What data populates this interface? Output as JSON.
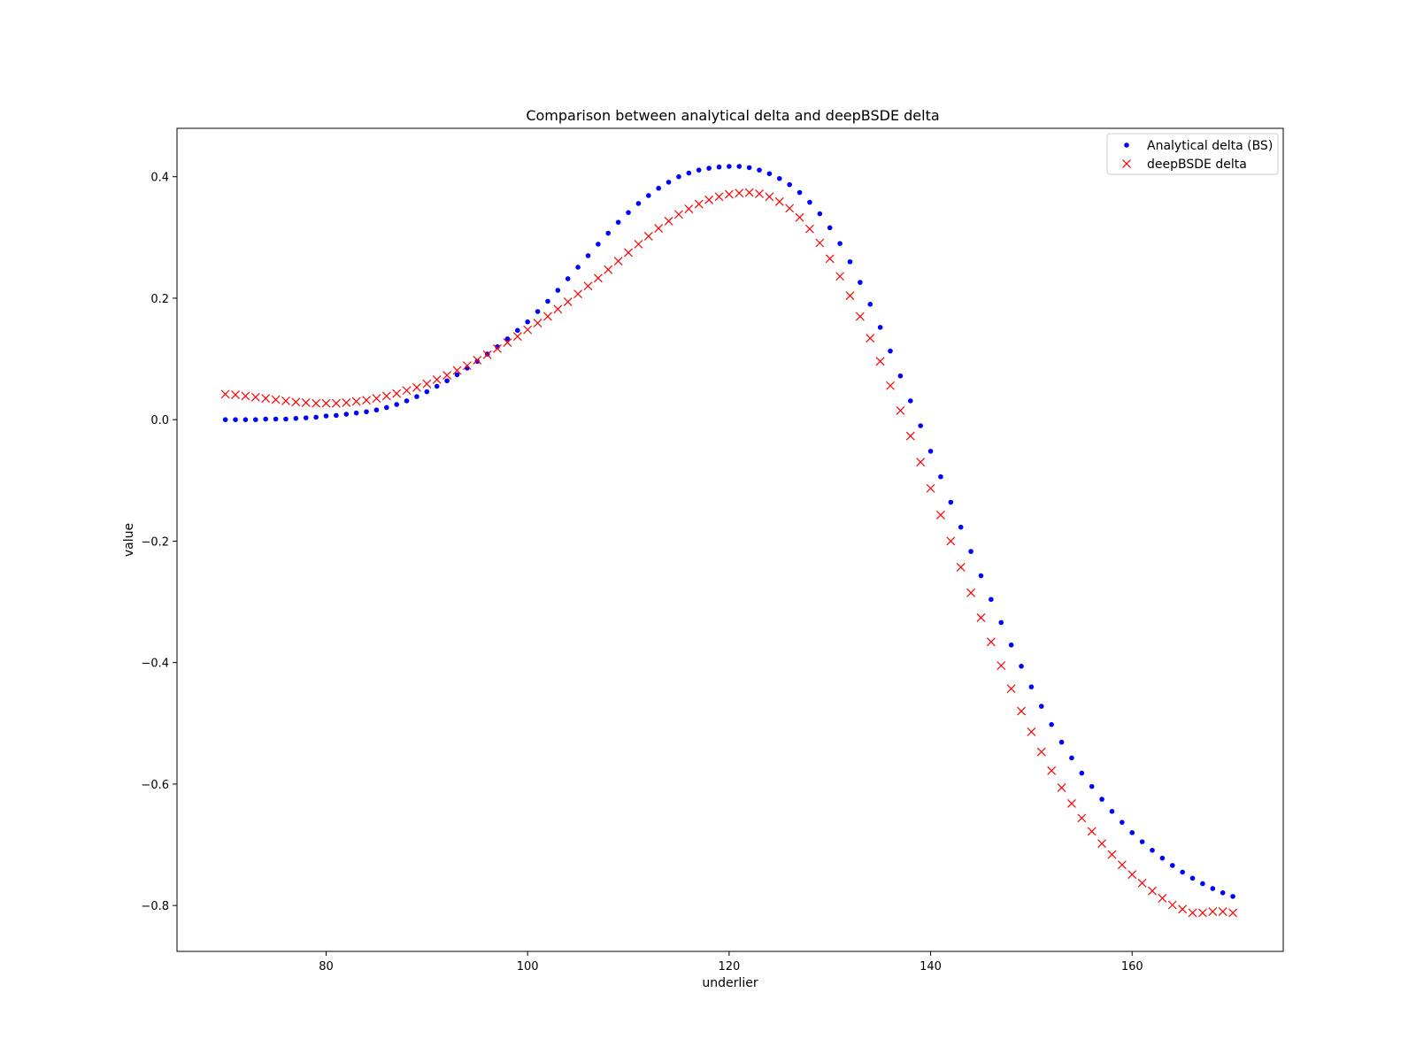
{
  "chart_data": {
    "type": "scatter",
    "title": "Comparison between analytical delta and deepBSDE delta",
    "xlabel": "underlier",
    "ylabel": "value",
    "xlim": [
      65.2,
      175.0
    ],
    "ylim": [
      -0.8755,
      0.4797
    ],
    "xticks": [
      80,
      100,
      120,
      140,
      160
    ],
    "xtick_labels": [
      "80",
      "100",
      "120",
      "140",
      "160"
    ],
    "yticks": [
      0.4,
      0.2,
      0.0,
      -0.2,
      -0.4,
      -0.6,
      -0.8
    ],
    "ytick_labels": [
      "0.4",
      "0.2",
      "0.0",
      "−0.2",
      "−0.4",
      "−0.6",
      "−0.8"
    ],
    "grid": false,
    "legend": {
      "position": "top-right",
      "entries": [
        "Analytical delta (BS)",
        "deepBSDE delta"
      ]
    },
    "series": [
      {
        "name": "Analytical delta (BS)",
        "marker": "dot",
        "color": "#0000ff",
        "points": [
          [
            70,
            0.0
          ],
          [
            71,
            0.0
          ],
          [
            72,
            0.0
          ],
          [
            73,
            0.0
          ],
          [
            74,
            0.001
          ],
          [
            75,
            0.001
          ],
          [
            76,
            0.001
          ],
          [
            77,
            0.002
          ],
          [
            78,
            0.003
          ],
          [
            79,
            0.004
          ],
          [
            80,
            0.006
          ],
          [
            81,
            0.007
          ],
          [
            82,
            0.009
          ],
          [
            83,
            0.011
          ],
          [
            84,
            0.013
          ],
          [
            85,
            0.016
          ],
          [
            86,
            0.02
          ],
          [
            87,
            0.025
          ],
          [
            88,
            0.031
          ],
          [
            89,
            0.038
          ],
          [
            90,
            0.046
          ],
          [
            91,
            0.055
          ],
          [
            92,
            0.064
          ],
          [
            93,
            0.074
          ],
          [
            94,
            0.085
          ],
          [
            95,
            0.096
          ],
          [
            96,
            0.108
          ],
          [
            97,
            0.12
          ],
          [
            98,
            0.133
          ],
          [
            99,
            0.147
          ],
          [
            100,
            0.161
          ],
          [
            101,
            0.178
          ],
          [
            102,
            0.195
          ],
          [
            103,
            0.213
          ],
          [
            104,
            0.232
          ],
          [
            105,
            0.251
          ],
          [
            106,
            0.27
          ],
          [
            107,
            0.289
          ],
          [
            108,
            0.307
          ],
          [
            109,
            0.325
          ],
          [
            110,
            0.341
          ],
          [
            111,
            0.356
          ],
          [
            112,
            0.369
          ],
          [
            113,
            0.381
          ],
          [
            114,
            0.391
          ],
          [
            115,
            0.4
          ],
          [
            116,
            0.406
          ],
          [
            117,
            0.411
          ],
          [
            118,
            0.414
          ],
          [
            119,
            0.416
          ],
          [
            120,
            0.417
          ],
          [
            121,
            0.417
          ],
          [
            122,
            0.415
          ],
          [
            123,
            0.411
          ],
          [
            124,
            0.405
          ],
          [
            125,
            0.397
          ],
          [
            126,
            0.387
          ],
          [
            127,
            0.374
          ],
          [
            128,
            0.358
          ],
          [
            129,
            0.339
          ],
          [
            130,
            0.316
          ],
          [
            131,
            0.29
          ],
          [
            132,
            0.26
          ],
          [
            133,
            0.226
          ],
          [
            134,
            0.19
          ],
          [
            135,
            0.152
          ],
          [
            136,
            0.113
          ],
          [
            137,
            0.072
          ],
          [
            138,
            0.031
          ],
          [
            139,
            -0.01
          ],
          [
            140,
            -0.052
          ],
          [
            141,
            -0.094
          ],
          [
            142,
            -0.136
          ],
          [
            143,
            -0.177
          ],
          [
            144,
            -0.217
          ],
          [
            145,
            -0.257
          ],
          [
            146,
            -0.296
          ],
          [
            147,
            -0.334
          ],
          [
            148,
            -0.371
          ],
          [
            149,
            -0.406
          ],
          [
            150,
            -0.44
          ],
          [
            151,
            -0.472
          ],
          [
            152,
            -0.502
          ],
          [
            153,
            -0.531
          ],
          [
            154,
            -0.557
          ],
          [
            155,
            -0.582
          ],
          [
            156,
            -0.604
          ],
          [
            157,
            -0.625
          ],
          [
            158,
            -0.645
          ],
          [
            159,
            -0.663
          ],
          [
            160,
            -0.68
          ],
          [
            161,
            -0.695
          ],
          [
            162,
            -0.709
          ],
          [
            163,
            -0.722
          ],
          [
            164,
            -0.734
          ],
          [
            165,
            -0.745
          ],
          [
            166,
            -0.755
          ],
          [
            167,
            -0.764
          ],
          [
            168,
            -0.772
          ],
          [
            169,
            -0.779
          ],
          [
            170,
            -0.785
          ]
        ]
      },
      {
        "name": "deepBSDE delta",
        "marker": "x",
        "color": "#ff0000",
        "points": [
          [
            70,
            0.042
          ],
          [
            71,
            0.041
          ],
          [
            72,
            0.039
          ],
          [
            73,
            0.037
          ],
          [
            74,
            0.035
          ],
          [
            75,
            0.033
          ],
          [
            76,
            0.031
          ],
          [
            77,
            0.029
          ],
          [
            78,
            0.028
          ],
          [
            79,
            0.027
          ],
          [
            80,
            0.027
          ],
          [
            81,
            0.027
          ],
          [
            82,
            0.028
          ],
          [
            83,
            0.03
          ],
          [
            84,
            0.032
          ],
          [
            85,
            0.035
          ],
          [
            86,
            0.039
          ],
          [
            87,
            0.043
          ],
          [
            88,
            0.048
          ],
          [
            89,
            0.053
          ],
          [
            90,
            0.059
          ],
          [
            91,
            0.066
          ],
          [
            92,
            0.073
          ],
          [
            93,
            0.081
          ],
          [
            94,
            0.089
          ],
          [
            95,
            0.098
          ],
          [
            96,
            0.107
          ],
          [
            97,
            0.117
          ],
          [
            98,
            0.127
          ],
          [
            99,
            0.137
          ],
          [
            100,
            0.148
          ],
          [
            101,
            0.159
          ],
          [
            102,
            0.17
          ],
          [
            103,
            0.182
          ],
          [
            104,
            0.194
          ],
          [
            105,
            0.207
          ],
          [
            106,
            0.22
          ],
          [
            107,
            0.233
          ],
          [
            108,
            0.247
          ],
          [
            109,
            0.261
          ],
          [
            110,
            0.275
          ],
          [
            111,
            0.289
          ],
          [
            112,
            0.302
          ],
          [
            113,
            0.315
          ],
          [
            114,
            0.327
          ],
          [
            115,
            0.338
          ],
          [
            116,
            0.347
          ],
          [
            117,
            0.355
          ],
          [
            118,
            0.362
          ],
          [
            119,
            0.367
          ],
          [
            120,
            0.371
          ],
          [
            121,
            0.373
          ],
          [
            122,
            0.374
          ],
          [
            123,
            0.372
          ],
          [
            124,
            0.367
          ],
          [
            125,
            0.359
          ],
          [
            126,
            0.348
          ],
          [
            127,
            0.333
          ],
          [
            128,
            0.314
          ],
          [
            129,
            0.291
          ],
          [
            130,
            0.265
          ],
          [
            131,
            0.236
          ],
          [
            132,
            0.204
          ],
          [
            133,
            0.17
          ],
          [
            134,
            0.134
          ],
          [
            135,
            0.096
          ],
          [
            136,
            0.056
          ],
          [
            137,
            0.015
          ],
          [
            138,
            -0.027
          ],
          [
            139,
            -0.07
          ],
          [
            140,
            -0.113
          ],
          [
            141,
            -0.157
          ],
          [
            142,
            -0.2
          ],
          [
            143,
            -0.243
          ],
          [
            144,
            -0.285
          ],
          [
            145,
            -0.326
          ],
          [
            146,
            -0.366
          ],
          [
            147,
            -0.405
          ],
          [
            148,
            -0.443
          ],
          [
            149,
            -0.48
          ],
          [
            150,
            -0.514
          ],
          [
            151,
            -0.547
          ],
          [
            152,
            -0.578
          ],
          [
            153,
            -0.606
          ],
          [
            154,
            -0.632
          ],
          [
            155,
            -0.656
          ],
          [
            156,
            -0.678
          ],
          [
            157,
            -0.698
          ],
          [
            158,
            -0.716
          ],
          [
            159,
            -0.733
          ],
          [
            160,
            -0.749
          ],
          [
            161,
            -0.763
          ],
          [
            162,
            -0.776
          ],
          [
            163,
            -0.788
          ],
          [
            164,
            -0.799
          ],
          [
            165,
            -0.806
          ],
          [
            166,
            -0.812
          ],
          [
            167,
            -0.812
          ],
          [
            168,
            -0.81
          ],
          [
            169,
            -0.81
          ],
          [
            170,
            -0.812
          ]
        ]
      }
    ]
  }
}
